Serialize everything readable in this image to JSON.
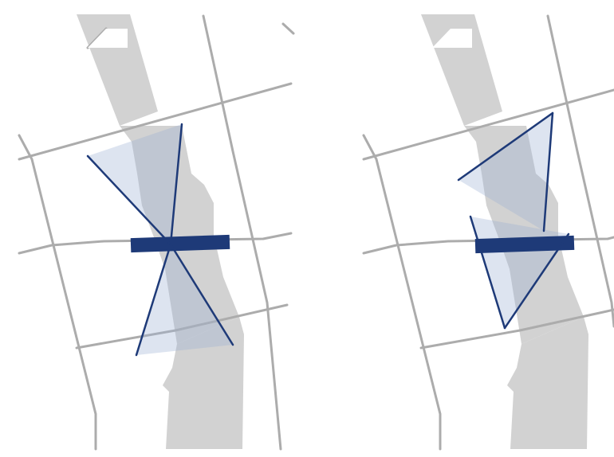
{
  "colors": {
    "background": "#ffffff",
    "river": "#d2d2d2",
    "roads": "#acacac",
    "accent": "#1e3a78",
    "triangle_fill": "#9fb2d4",
    "triangle_fill_opacity": 0.35
  },
  "panels": [
    {
      "id": "left",
      "arrangement": "crossing"
    },
    {
      "id": "right",
      "arrangement": "side-by-side"
    }
  ]
}
